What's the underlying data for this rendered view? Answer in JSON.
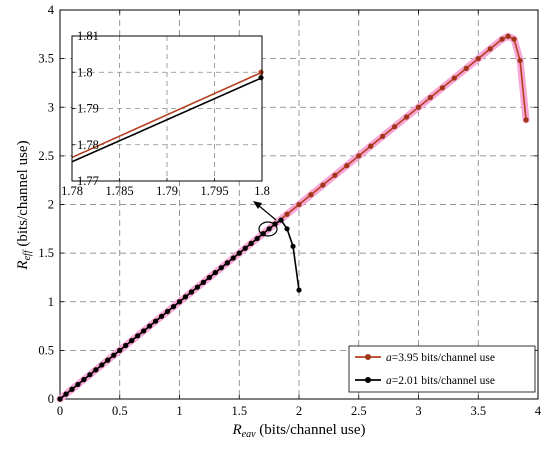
{
  "chart_data": {
    "type": "line",
    "title": "",
    "xlabel_main": "R",
    "xlabel_sub": "eav",
    "xlabel_unit": " (bits/channel use)",
    "ylabel_main": "R",
    "ylabel_sub": "eff",
    "ylabel_unit": " (bits/channel use)",
    "xlim": [
      0,
      4
    ],
    "ylim": [
      0,
      4
    ],
    "xticks": [
      "0",
      "0.5",
      "1",
      "1.5",
      "2",
      "2.5",
      "3",
      "3.5",
      "4"
    ],
    "yticks": [
      "0",
      "0.5",
      "1",
      "1.5",
      "2",
      "2.5",
      "3",
      "3.5",
      "4"
    ],
    "grid": true,
    "legend_position": "bottom-right",
    "series": [
      {
        "name": "a=3.95 bits/channel use",
        "legend_italic": "a",
        "legend_rest": "=3.95 bits/channel use",
        "color": "#b5401f",
        "marker_color": "#a03518",
        "highlight_color": "#f7a6d6",
        "x": [
          0,
          0.1,
          0.2,
          0.3,
          0.4,
          0.5,
          0.6,
          0.7,
          0.8,
          0.9,
          1.0,
          1.1,
          1.2,
          1.3,
          1.4,
          1.5,
          1.6,
          1.7,
          1.8,
          1.9,
          2.0,
          2.1,
          2.2,
          2.3,
          2.4,
          2.5,
          2.6,
          2.7,
          2.8,
          2.9,
          3.0,
          3.1,
          3.2,
          3.3,
          3.4,
          3.5,
          3.6,
          3.7,
          3.75,
          3.8,
          3.85,
          3.9
        ],
        "y": [
          0,
          0.1,
          0.2,
          0.3,
          0.4,
          0.5,
          0.6,
          0.7,
          0.8,
          0.9,
          1.0,
          1.1,
          1.2,
          1.3,
          1.4,
          1.5,
          1.6,
          1.7,
          1.8,
          1.9,
          2.0,
          2.1,
          2.2,
          2.3,
          2.4,
          2.5,
          2.6,
          2.7,
          2.8,
          2.9,
          3.0,
          3.1,
          3.2,
          3.3,
          3.4,
          3.5,
          3.6,
          3.7,
          3.73,
          3.7,
          3.48,
          2.87
        ]
      },
      {
        "name": "a=2.01 bits/channel use",
        "legend_italic": "a",
        "legend_rest": "=2.01 bits/channel use",
        "color": "#000000",
        "marker_color": "#000000",
        "highlight_color": "",
        "x": [
          0,
          0.05,
          0.1,
          0.15,
          0.2,
          0.25,
          0.3,
          0.35,
          0.4,
          0.45,
          0.5,
          0.55,
          0.6,
          0.65,
          0.7,
          0.75,
          0.8,
          0.85,
          0.9,
          0.95,
          1.0,
          1.05,
          1.1,
          1.15,
          1.2,
          1.25,
          1.3,
          1.35,
          1.4,
          1.45,
          1.5,
          1.55,
          1.6,
          1.65,
          1.7,
          1.75,
          1.8,
          1.85,
          1.9,
          1.95,
          2.0
        ],
        "y": [
          0,
          0.05,
          0.1,
          0.15,
          0.2,
          0.25,
          0.3,
          0.35,
          0.4,
          0.45,
          0.5,
          0.55,
          0.6,
          0.65,
          0.7,
          0.75,
          0.8,
          0.85,
          0.9,
          0.95,
          1.0,
          1.05,
          1.1,
          1.15,
          1.2,
          1.25,
          1.3,
          1.35,
          1.4,
          1.45,
          1.5,
          1.55,
          1.6,
          1.65,
          1.7,
          1.75,
          1.8,
          1.84,
          1.75,
          1.57,
          1.12
        ]
      }
    ],
    "inset": {
      "xlim": [
        1.78,
        1.8
      ],
      "ylim": [
        1.77,
        1.81
      ],
      "xticks": [
        "1.78",
        "1.785",
        "1.79",
        "1.795",
        "1.8"
      ],
      "yticks": [
        "1.77",
        "1.78",
        "1.79",
        "1.8",
        "1.81"
      ],
      "series": [
        {
          "name": "a=3.95 bits/channel use",
          "color": "#b5401f",
          "x": [
            1.78,
            1.8
          ],
          "y": [
            1.7765,
            1.8
          ]
        },
        {
          "name": "a=2.01 bits/channel use",
          "color": "#000000",
          "x": [
            1.78,
            1.8
          ],
          "y": [
            1.7753,
            1.7985
          ]
        }
      ],
      "zoom_target": [
        1.76,
        1.78
      ]
    }
  }
}
